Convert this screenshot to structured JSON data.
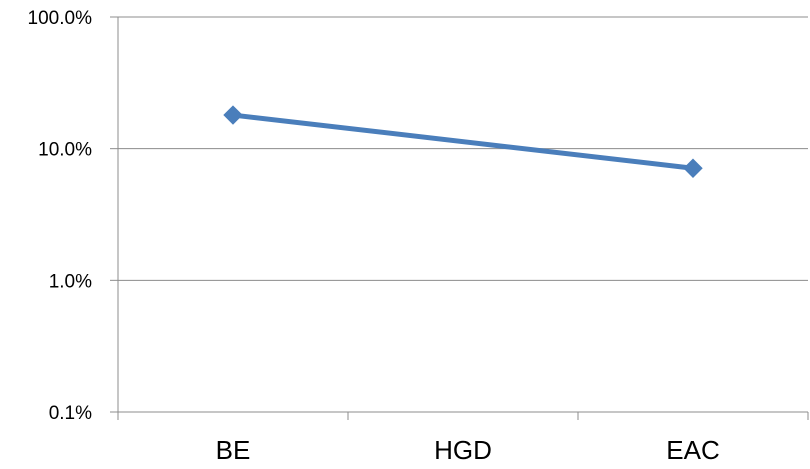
{
  "chart_data": {
    "type": "line",
    "y_scale": "log",
    "ylim": [
      0.001,
      1
    ],
    "y_ticks": [
      {
        "value": 0.001,
        "label": "0.1%"
      },
      {
        "value": 0.01,
        "label": "1.0%"
      },
      {
        "value": 0.1,
        "label": "10.0%"
      },
      {
        "value": 1,
        "label": "100.0%"
      }
    ],
    "categories": [
      "BE",
      "HGD",
      "EAC"
    ],
    "series": [
      {
        "color": "#4a7ebb",
        "marker": "diamond",
        "points": [
          {
            "x": "BE",
            "y": 0.18
          },
          {
            "x": "EAC",
            "y": 0.071
          }
        ]
      }
    ],
    "grid": true,
    "legend": "none"
  }
}
